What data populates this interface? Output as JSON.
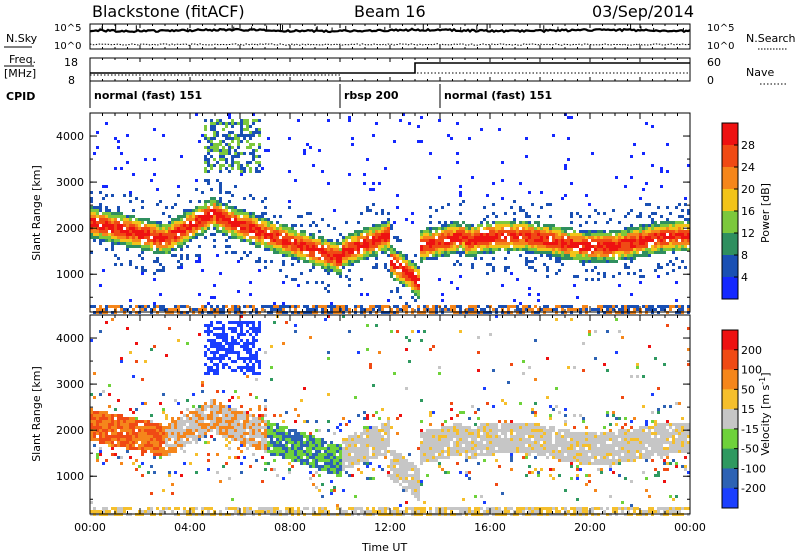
{
  "header": {
    "radar": "Blackstone (fitACF)",
    "beam": "Beam 16",
    "date": "03/Sep/2014"
  },
  "top_panels": {
    "nsky_label": "N.Sky",
    "nsearch_label": "N.Search",
    "nsky_ticks": [
      "10^5",
      "10^0"
    ],
    "freq_label_1": "Freq.",
    "freq_label_2": "[MHz]",
    "freq_ticks": [
      "18",
      "8"
    ],
    "nave_label": "Nave",
    "nave_ticks": [
      "60",
      "0"
    ],
    "cpid_label": "CPID",
    "cpid_segments": [
      {
        "label": "normal (fast) 151",
        "start_hour": 0,
        "end_hour": 10
      },
      {
        "label": "rbsp 200",
        "start_hour": 10,
        "end_hour": 14
      },
      {
        "label": "normal (fast) 151",
        "start_hour": 14,
        "end_hour": 24
      }
    ]
  },
  "chart_data": [
    {
      "type": "heatmap",
      "parameter": "Power",
      "ylabel": "Slant Range [km]",
      "xlabel": "",
      "xlim": [
        0,
        24
      ],
      "ylim": [
        180,
        4500
      ],
      "yticks": [
        1000,
        2000,
        3000,
        4000
      ],
      "colorbar_label": "Power [dB]",
      "colorbar_ticks": [
        "4",
        "8",
        "12",
        "16",
        "20",
        "24",
        "28"
      ],
      "colorbar_colors": [
        "#1428ff",
        "#1a50b4",
        "#2f8f5f",
        "#7cc83c",
        "#f3c419",
        "#f5861b",
        "#f04a14",
        "#ee1111"
      ]
    },
    {
      "type": "heatmap",
      "parameter": "Velocity",
      "ylabel": "Slant Range [km]",
      "xlabel": "Time UT",
      "xlim": [
        0,
        24
      ],
      "ylim": [
        180,
        4500
      ],
      "yticks": [
        1000,
        2000,
        3000,
        4000
      ],
      "xticks": [
        "00:00",
        "04:00",
        "08:00",
        "12:00",
        "16:00",
        "20:00",
        "00:00"
      ],
      "colorbar_label": "Velocity [m s-1]",
      "colorbar_label_base": "Velocity [m s",
      "colorbar_label_exp": "-1",
      "colorbar_label_end": "]",
      "colorbar_ticks": [
        "200",
        "100",
        "50",
        "15",
        "-15",
        "-50",
        "-100",
        "-200"
      ],
      "colorbar_colors": [
        "#1b3fff",
        "#2d62b4",
        "#2f9960",
        "#6ed23a",
        "#c6c6c6",
        "#f5bf2c",
        "#f5861b",
        "#f04a14",
        "#ee1111"
      ]
    }
  ]
}
